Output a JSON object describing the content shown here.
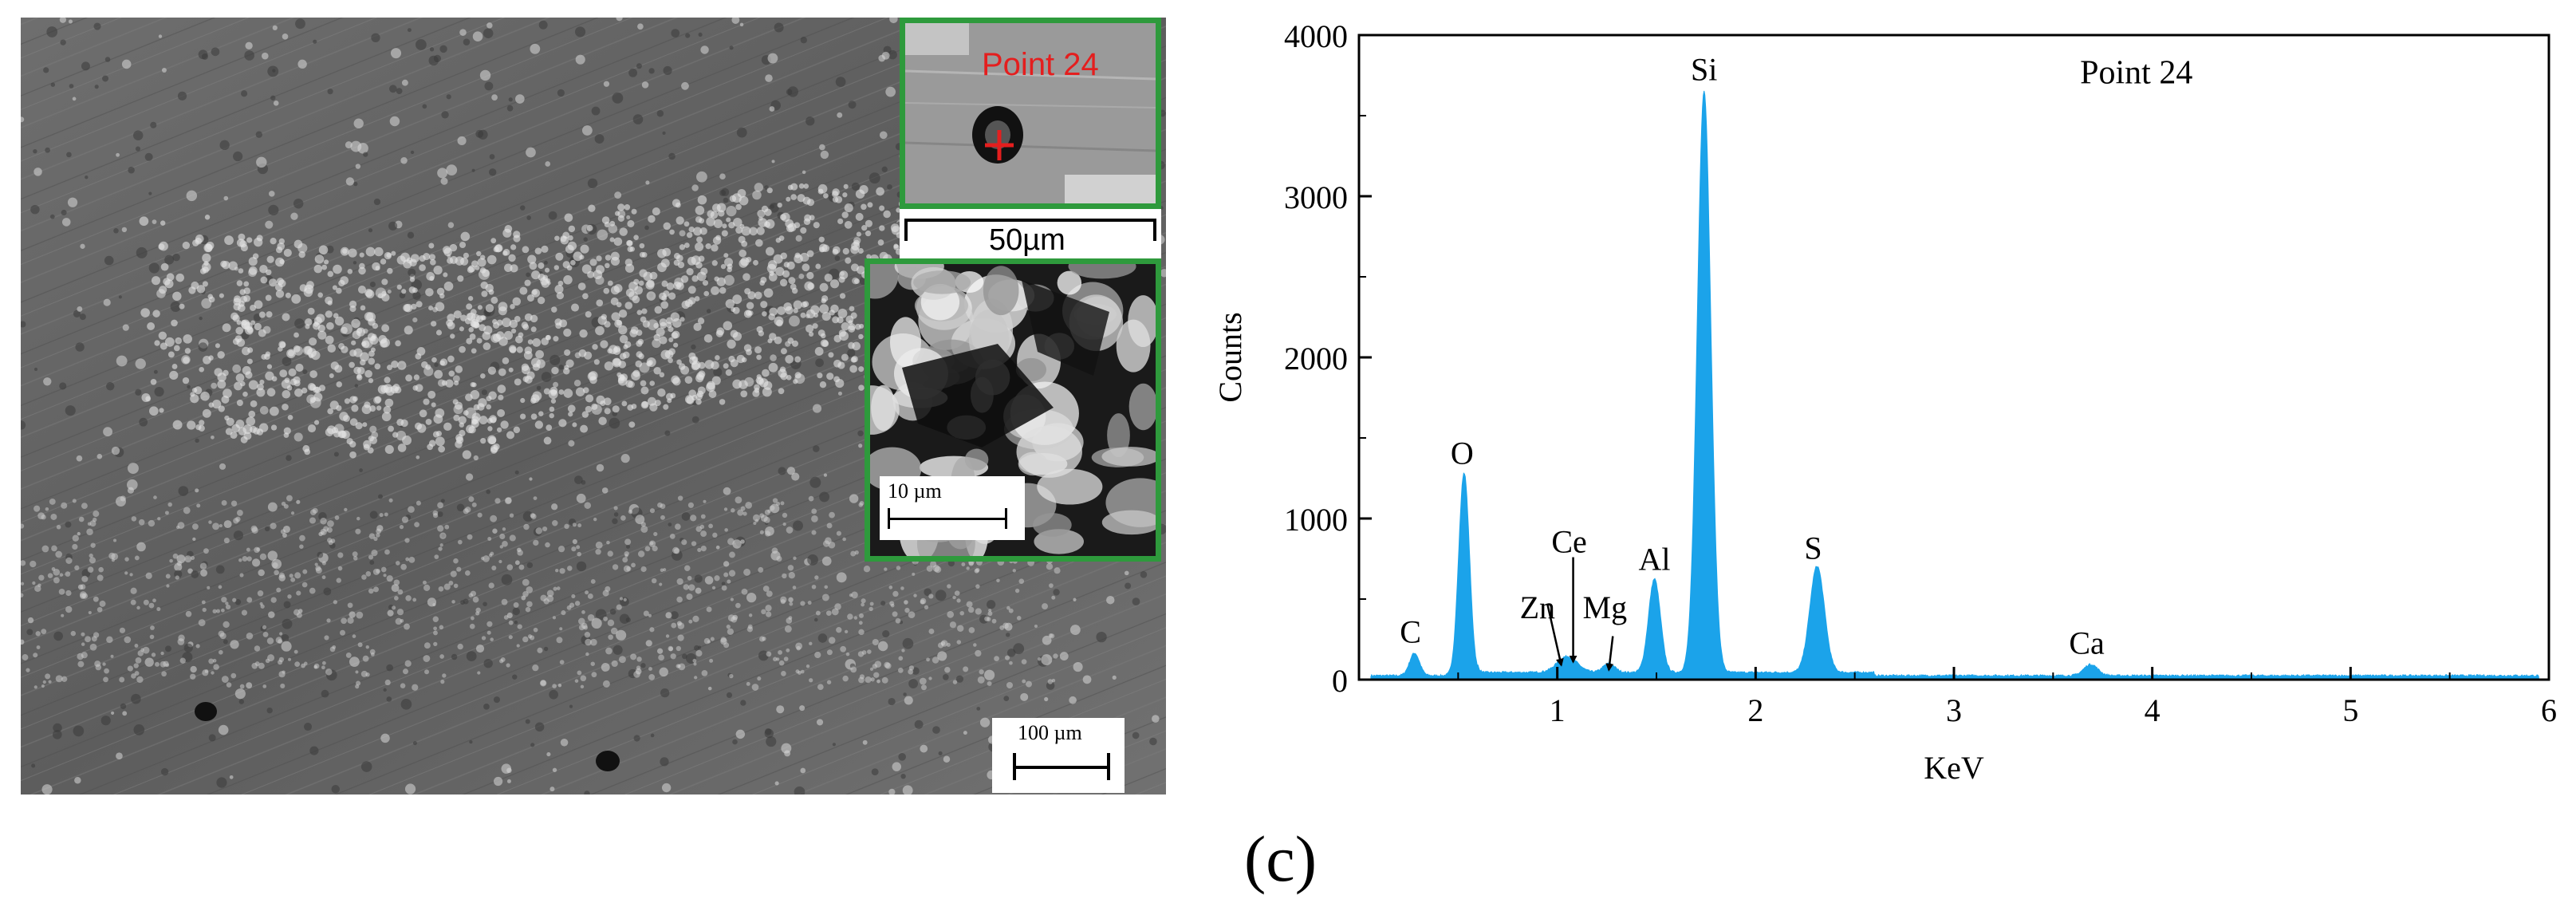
{
  "panel_label": "(c)",
  "sem": {
    "main_scale_text": "100 µm",
    "point_label": "Point 24",
    "inset_top_scale_text": "50µm",
    "inset_mid_scale_text": "10 µm",
    "border_color": "#2e9a3c",
    "marker_color": "#e41e1e"
  },
  "chart_data": {
    "type": "line",
    "title": "Point 24",
    "xlabel": "KeV",
    "ylabel": "Counts",
    "xlim": [
      0,
      6
    ],
    "ylim": [
      0,
      4000
    ],
    "xticks": [
      1,
      2,
      3,
      4,
      5,
      6
    ],
    "yticks": [
      0,
      1000,
      2000,
      3000,
      4000
    ],
    "fill_color": "#1ba3ea",
    "baseline": 25,
    "peaks": [
      {
        "element": "C",
        "energy": 0.28,
        "counts": 140,
        "width": 0.025
      },
      {
        "element": "O",
        "energy": 0.53,
        "counts": 1260,
        "width": 0.027
      },
      {
        "element": "Ce",
        "energy": 1.05,
        "counts": 100,
        "width": 0.05
      },
      {
        "element": "Mg",
        "energy": 1.26,
        "counts": 55,
        "width": 0.03
      },
      {
        "element": "Al",
        "energy": 1.49,
        "counts": 580,
        "width": 0.03
      },
      {
        "element": "Si",
        "energy": 1.74,
        "counts": 3610,
        "width": 0.034
      },
      {
        "element": "S",
        "energy": 2.31,
        "counts": 660,
        "width": 0.037
      },
      {
        "element": "Ca",
        "energy": 3.69,
        "counts": 70,
        "width": 0.035
      }
    ],
    "labels": [
      {
        "text": "C",
        "x": 0.26,
        "y": 230
      },
      {
        "text": "O",
        "x": 0.52,
        "y": 1340
      },
      {
        "text": "Zn",
        "x": 0.9,
        "y": 380
      },
      {
        "text": "Ce",
        "x": 1.06,
        "y": 790
      },
      {
        "text": "Mg",
        "x": 1.24,
        "y": 380
      },
      {
        "text": "Al",
        "x": 1.49,
        "y": 680
      },
      {
        "text": "Si",
        "x": 1.74,
        "y": 3720
      },
      {
        "text": "S",
        "x": 2.29,
        "y": 750
      },
      {
        "text": "Ca",
        "x": 3.67,
        "y": 160
      }
    ],
    "arrows": [
      {
        "from": [
          0.95,
          470
        ],
        "to": [
          1.02,
          90
        ]
      },
      {
        "from": [
          1.08,
          760
        ],
        "to": [
          1.08,
          110
        ]
      },
      {
        "from": [
          1.28,
          270
        ],
        "to": [
          1.26,
          60
        ]
      }
    ]
  }
}
